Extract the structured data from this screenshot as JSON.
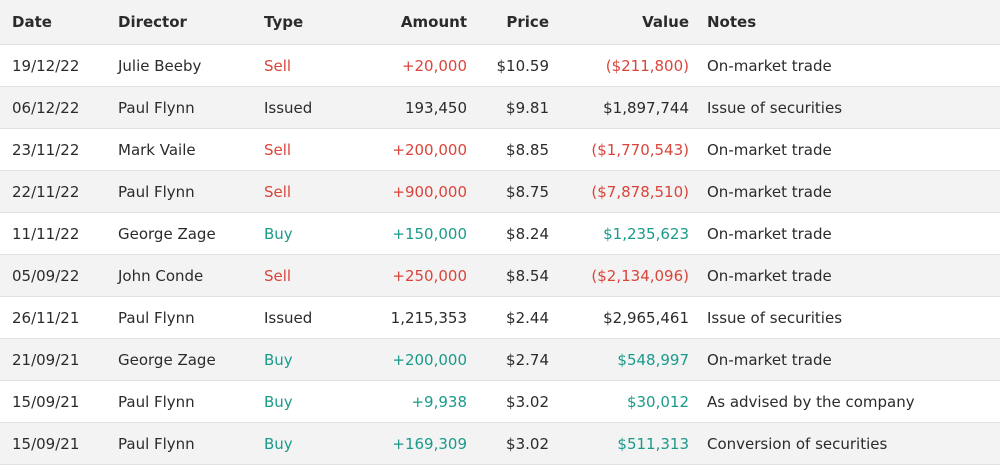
{
  "table": {
    "headers": [
      "Date",
      "Director",
      "Type",
      "Amount",
      "Price",
      "Value",
      "Notes"
    ],
    "text_color": "#2b2b2b",
    "rows": [
      {
        "cells": [
          "19/12/22",
          "Julie Beeby",
          "Sell",
          "+20,000",
          "$10.59",
          "($211,800)",
          "On-market trade"
        ],
        "color": "#d9453b"
      },
      {
        "cells": [
          "06/12/22",
          "Paul Flynn",
          "Issued",
          "193,450",
          "$9.81",
          "$1,897,744",
          "Issue of securities"
        ],
        "color": "#2b2b2b"
      },
      {
        "cells": [
          "23/11/22",
          "Mark Vaile",
          "Sell",
          "+200,000",
          "$8.85",
          "($1,770,543)",
          "On-market trade"
        ],
        "color": "#d9453b"
      },
      {
        "cells": [
          "22/11/22",
          "Paul Flynn",
          "Sell",
          "+900,000",
          "$8.75",
          "($7,878,510)",
          "On-market trade"
        ],
        "color": "#d9453b"
      },
      {
        "cells": [
          "11/11/22",
          "George Zage",
          "Buy",
          "+150,000",
          "$8.24",
          "$1,235,623",
          "On-market trade"
        ],
        "color": "#1a9a8a"
      },
      {
        "cells": [
          "05/09/22",
          "John Conde",
          "Sell",
          "+250,000",
          "$8.54",
          "($2,134,096)",
          "On-market trade"
        ],
        "color": "#d9453b"
      },
      {
        "cells": [
          "26/11/21",
          "Paul Flynn",
          "Issued",
          "1,215,353",
          "$2.44",
          "$2,965,461",
          "Issue of securities"
        ],
        "color": "#2b2b2b"
      },
      {
        "cells": [
          "21/09/21",
          "George Zage",
          "Buy",
          "+200,000",
          "$2.74",
          "$548,997",
          "On-market trade"
        ],
        "color": "#1a9a8a"
      },
      {
        "cells": [
          "15/09/21",
          "Paul Flynn",
          "Buy",
          "+9,938",
          "$3.02",
          "$30,012",
          "As advised by the company"
        ],
        "color": "#1a9a8a"
      },
      {
        "cells": [
          "15/09/21",
          "Paul Flynn",
          "Buy",
          "+169,309",
          "$3.02",
          "$511,313",
          "Conversion of securities"
        ],
        "color": "#1a9a8a"
      }
    ]
  }
}
